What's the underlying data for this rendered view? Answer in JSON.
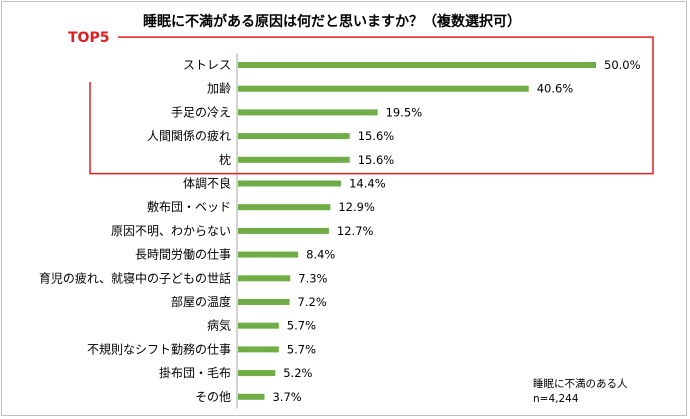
{
  "chart_data": {
    "type": "bar",
    "orientation": "horizontal",
    "title": "睡眠に不満がある原因は何だと思いますか？（複数選択可）",
    "categories": [
      "ストレス",
      "加齢",
      "手足の冷え",
      "人間関係の疲れ",
      "枕",
      "体調不良",
      "敷布団・ベッド",
      "原因不明、わからない",
      "長時間労働の仕事",
      "育児の疲れ、就寝中の子どもの世話",
      "部屋の温度",
      "病気",
      "不規則なシフト勤務の仕事",
      "掛布団・毛布",
      "その他"
    ],
    "values": [
      50.0,
      40.6,
      19.5,
      15.6,
      15.6,
      14.4,
      12.9,
      12.7,
      8.4,
      7.3,
      7.2,
      5.7,
      5.7,
      5.2,
      3.7
    ],
    "value_labels": [
      "50.0%",
      "40.6%",
      "19.5%",
      "15.6%",
      "15.6%",
      "14.4%",
      "12.9%",
      "12.7%",
      "8.4%",
      "7.3%",
      "7.2%",
      "5.7%",
      "5.7%",
      "5.2%",
      "3.7%"
    ],
    "xlim": [
      0,
      50
    ],
    "grid": false,
    "highlight": {
      "label": "TOP5",
      "count": 5,
      "color": "#e02020"
    },
    "bar_color": "#70ad47",
    "note_lines": [
      "睡眠に不満のある人",
      "n=4,244"
    ]
  }
}
